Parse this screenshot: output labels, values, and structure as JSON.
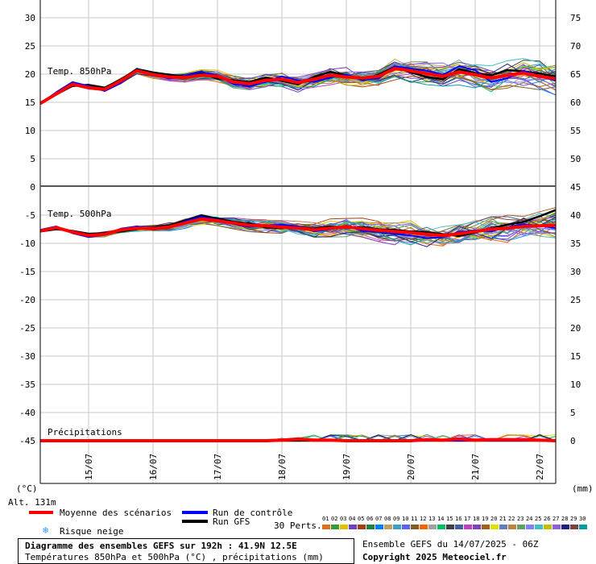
{
  "header": {
    "title": "Diagramme des ensembles GEFS sur 192h : 41.9N 12.5E",
    "subtitle": "Températures 850hPa et 500hPa (°C) , précipitations (mm)",
    "run": "Ensemble GEFS du 14/07/2025 - 06Z",
    "copyright": "Copyright 2025 Meteociel.fr"
  },
  "axis": {
    "left_unit": "(°C)",
    "right_unit": "(mm)",
    "altitude": "Alt. 131m",
    "left_ticks": [
      "30",
      "25",
      "20",
      "15",
      "10",
      "5",
      "0",
      "-5",
      "-10",
      "-15",
      "-20",
      "-25",
      "-30",
      "-35",
      "-40",
      "-45"
    ],
    "right_ticks": [
      "75",
      "70",
      "65",
      "60",
      "55",
      "50",
      "45",
      "40",
      "35",
      "30",
      "25",
      "20",
      "15",
      "10",
      "5",
      "0"
    ],
    "date_labels": [
      "15/07",
      "16/07",
      "17/07",
      "18/07",
      "19/07",
      "20/07",
      "21/07",
      "22/07"
    ]
  },
  "legend": {
    "mean": "Moyenne des scénarios",
    "control": "Run de contrôle",
    "gfs": "Run GFS",
    "snow": "Risque neige",
    "perts_label": "30 Perts.",
    "pert_numbers": [
      "01",
      "02",
      "03",
      "04",
      "05",
      "06",
      "07",
      "08",
      "09",
      "10",
      "11",
      "12",
      "13",
      "14",
      "15",
      "16",
      "17",
      "18",
      "19",
      "20",
      "21",
      "22",
      "23",
      "24",
      "25",
      "26",
      "27",
      "28",
      "29",
      "30"
    ],
    "colors": {
      "mean": "#ff0000",
      "control": "#0000ff",
      "gfs": "#000000",
      "snow": "#3399ff"
    }
  },
  "chart_data": {
    "type": "line",
    "x_unit": "forecast hours from 14/07/2025 06Z",
    "x_range": [
      0,
      192
    ],
    "panels": [
      {
        "label": "Temp. 850hPa",
        "y_range_left": [
          0,
          30
        ],
        "y_range_right": [
          45,
          75
        ],
        "x": [
          0,
          6,
          12,
          18,
          24,
          30,
          36,
          42,
          48,
          54,
          60,
          66,
          72,
          78,
          84,
          90,
          96,
          102,
          108,
          114,
          120,
          126,
          132,
          138,
          144,
          150,
          156,
          162,
          168,
          174,
          180,
          186,
          192
        ],
        "series": [
          {
            "role": "mean",
            "values": [
              14.8,
              16.5,
              18.2,
              17.6,
              17.3,
              18.8,
              20.6,
              19.9,
              19.5,
              19.4,
              19.8,
              19.6,
              18.6,
              18.3,
              18.9,
              19.1,
              18.5,
              19.1,
              19.8,
              19.5,
              19.3,
              19.6,
              21.0,
              20.6,
              20.1,
              19.6,
              20.4,
              19.9,
              19.3,
              19.8,
              20.2,
              19.6,
              19.2
            ]
          },
          {
            "role": "control",
            "values": [
              14.8,
              16.8,
              18.6,
              17.9,
              17.0,
              18.4,
              20.8,
              20.0,
              19.2,
              19.7,
              20.4,
              19.8,
              18.2,
              17.9,
              18.6,
              19.6,
              18.9,
              18.6,
              19.4,
              19.9,
              19.1,
              19.2,
              21.4,
              21.0,
              20.6,
              19.9,
              21.4,
              20.7,
              18.6,
              19.3,
              20.6,
              19.7,
              18.8
            ]
          },
          {
            "role": "gfs",
            "values": [
              14.9,
              16.4,
              17.9,
              18.1,
              17.6,
              19.0,
              20.9,
              20.3,
              19.9,
              19.6,
              20.1,
              19.2,
              18.9,
              18.6,
              19.4,
              18.8,
              18.2,
              19.5,
              20.4,
              19.8,
              19.0,
              19.9,
              21.3,
              20.3,
              19.5,
              19.1,
              20.9,
              20.2,
              19.8,
              20.7,
              20.5,
              20.1,
              19.6
            ]
          }
        ]
      },
      {
        "label": "Temp. 500hPa",
        "y_range_left": [
          -45,
          0
        ],
        "y_range_right": [
          0,
          45
        ],
        "x": [
          0,
          6,
          12,
          18,
          24,
          30,
          36,
          42,
          48,
          54,
          60,
          66,
          72,
          78,
          84,
          90,
          96,
          102,
          108,
          114,
          120,
          126,
          132,
          138,
          144,
          150,
          156,
          162,
          168,
          174,
          180,
          186,
          192
        ],
        "series": [
          {
            "role": "mean",
            "values": [
              -7.8,
              -7.2,
              -8.0,
              -8.6,
              -8.4,
              -7.6,
              -7.3,
              -7.4,
              -7.1,
              -6.4,
              -5.7,
              -6.0,
              -6.4,
              -6.8,
              -6.9,
              -7.1,
              -7.3,
              -7.6,
              -7.3,
              -7.1,
              -7.4,
              -7.7,
              -7.9,
              -8.1,
              -8.4,
              -8.6,
              -8.3,
              -7.9,
              -7.5,
              -7.3,
              -7.0,
              -6.9,
              -6.8
            ]
          },
          {
            "role": "control",
            "values": [
              -7.6,
              -7.0,
              -8.2,
              -8.9,
              -8.5,
              -7.4,
              -7.0,
              -7.6,
              -7.3,
              -6.1,
              -5.3,
              -5.8,
              -6.6,
              -7.1,
              -6.8,
              -6.7,
              -7.0,
              -7.9,
              -7.5,
              -6.9,
              -7.8,
              -8.0,
              -8.3,
              -8.6,
              -9.1,
              -8.9,
              -8.0,
              -7.7,
              -7.9,
              -7.1,
              -6.6,
              -6.9,
              -7.3
            ]
          },
          {
            "role": "gfs",
            "values": [
              -7.9,
              -7.5,
              -7.8,
              -8.3,
              -8.2,
              -7.9,
              -7.5,
              -7.2,
              -6.8,
              -6.0,
              -5.1,
              -5.6,
              -6.2,
              -6.5,
              -7.2,
              -7.3,
              -7.1,
              -7.4,
              -7.0,
              -7.3,
              -7.1,
              -7.5,
              -7.6,
              -7.9,
              -8.0,
              -8.4,
              -8.7,
              -8.1,
              -7.3,
              -6.7,
              -6.2,
              -5.2,
              -4.1
            ]
          }
        ]
      },
      {
        "label": "Précipitations",
        "y_range_right": [
          0,
          5
        ],
        "x": [
          0,
          6,
          12,
          18,
          24,
          30,
          36,
          42,
          48,
          54,
          60,
          66,
          72,
          78,
          84,
          90,
          96,
          102,
          108,
          114,
          120,
          126,
          132,
          138,
          144,
          150,
          156,
          162,
          168,
          174,
          180,
          186,
          192
        ],
        "series": [
          {
            "role": "mean",
            "values": [
              0,
              0,
              0,
              0,
              0,
              0,
              0,
              0,
              0,
              0,
              0,
              0,
              0,
              0,
              0,
              0.1,
              0.3,
              0.1,
              0.1,
              0,
              0,
              0,
              0,
              0,
              0.2,
              0.1,
              0.3,
              0.1,
              0.2,
              0.2,
              0.2,
              0.1,
              0
            ]
          },
          {
            "role": "control",
            "values": [
              0,
              0,
              0,
              0,
              0,
              0,
              0,
              0,
              0,
              0,
              0,
              0,
              0,
              0,
              0,
              0,
              0.2,
              0,
              0,
              0,
              0,
              0,
              0,
              0,
              0,
              0,
              0,
              0,
              0,
              0,
              0,
              0,
              0
            ]
          },
          {
            "role": "gfs",
            "values": [
              0,
              0,
              0,
              0,
              0,
              0,
              0,
              0,
              0,
              0,
              0,
              0,
              0,
              0,
              0,
              0,
              0,
              0,
              0,
              0,
              0,
              0,
              0,
              0,
              0,
              0,
              0,
              0,
              0,
              0,
              0,
              0,
              0
            ]
          }
        ]
      }
    ],
    "grid": true
  }
}
